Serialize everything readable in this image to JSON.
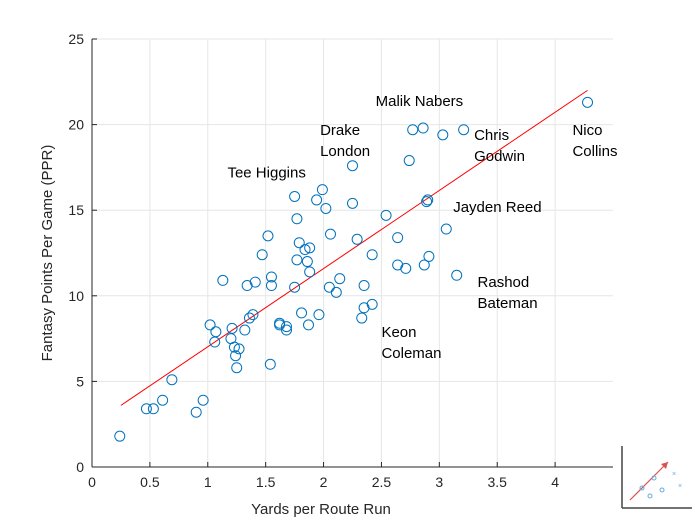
{
  "chart_data": {
    "type": "scatter",
    "xlabel": "Yards per Route Run",
    "ylabel": "Fantasy Points Per Game (PPR)",
    "xlim": [
      0,
      4.5
    ],
    "ylim": [
      0,
      25
    ],
    "xticks": [
      0,
      0.5,
      1,
      1.5,
      2,
      2.5,
      3,
      3.5,
      4
    ],
    "xtick_labels": [
      "0",
      "0.5",
      "1",
      "1.5",
      "2",
      "2.5",
      "3",
      "3.5",
      "4"
    ],
    "yticks": [
      0,
      5,
      10,
      15,
      20,
      25
    ],
    "ytick_labels": [
      "0",
      "5",
      "10",
      "15",
      "20",
      "25"
    ],
    "grid": true,
    "point_color": "#0072BD",
    "fit_color": "#FF0000",
    "trendline": {
      "x": [
        0.25,
        4.28
      ],
      "y": [
        3.6,
        22.0
      ]
    },
    "points": [
      [
        0.24,
        1.8
      ],
      [
        0.47,
        3.4
      ],
      [
        0.53,
        3.4
      ],
      [
        0.61,
        3.9
      ],
      [
        0.69,
        5.1
      ],
      [
        0.9,
        3.2
      ],
      [
        0.96,
        3.9
      ],
      [
        1.02,
        8.3
      ],
      [
        1.06,
        7.3
      ],
      [
        1.07,
        7.9
      ],
      [
        1.13,
        10.9
      ],
      [
        1.2,
        7.5
      ],
      [
        1.21,
        8.1
      ],
      [
        1.23,
        7.0
      ],
      [
        1.24,
        6.5
      ],
      [
        1.25,
        5.8
      ],
      [
        1.27,
        6.9
      ],
      [
        1.32,
        8.0
      ],
      [
        1.34,
        10.6
      ],
      [
        1.36,
        8.7
      ],
      [
        1.39,
        8.9
      ],
      [
        1.41,
        10.8
      ],
      [
        1.47,
        12.4
      ],
      [
        1.52,
        13.5
      ],
      [
        1.54,
        6.0
      ],
      [
        1.55,
        11.1
      ],
      [
        1.55,
        10.6
      ],
      [
        1.62,
        8.4
      ],
      [
        1.62,
        8.3
      ],
      [
        1.68,
        8.0
      ],
      [
        1.68,
        8.2
      ],
      [
        1.75,
        15.8
      ],
      [
        1.75,
        10.5
      ],
      [
        1.77,
        14.5
      ],
      [
        1.77,
        12.1
      ],
      [
        1.79,
        13.1
      ],
      [
        1.81,
        9.0
      ],
      [
        1.84,
        12.7
      ],
      [
        1.86,
        12.0
      ],
      [
        1.87,
        8.3
      ],
      [
        1.88,
        11.4
      ],
      [
        1.88,
        12.8
      ],
      [
        1.94,
        15.6
      ],
      [
        1.96,
        8.9
      ],
      [
        1.99,
        16.2
      ],
      [
        2.02,
        15.1
      ],
      [
        2.05,
        10.5
      ],
      [
        2.06,
        13.6
      ],
      [
        2.11,
        10.2
      ],
      [
        2.14,
        11.0
      ],
      [
        2.25,
        17.6
      ],
      [
        2.25,
        15.4
      ],
      [
        2.29,
        13.3
      ],
      [
        2.33,
        8.7
      ],
      [
        2.35,
        9.3
      ],
      [
        2.35,
        10.6
      ],
      [
        2.42,
        9.5
      ],
      [
        2.42,
        12.4
      ],
      [
        2.54,
        14.7
      ],
      [
        2.64,
        13.4
      ],
      [
        2.64,
        11.8
      ],
      [
        2.71,
        11.6
      ],
      [
        2.74,
        17.9
      ],
      [
        2.77,
        19.7
      ],
      [
        2.86,
        19.8
      ],
      [
        2.87,
        11.8
      ],
      [
        2.89,
        15.5
      ],
      [
        2.9,
        15.6
      ],
      [
        2.91,
        12.3
      ],
      [
        3.03,
        19.4
      ],
      [
        3.06,
        13.9
      ],
      [
        3.15,
        11.2
      ],
      [
        3.21,
        19.7
      ],
      [
        4.28,
        21.3
      ]
    ],
    "annotations": [
      {
        "lines": [
          "Malik Nabers"
        ],
        "x": 2.45,
        "y": 21.1
      },
      {
        "lines": [
          "Drake",
          "London"
        ],
        "x": 1.97,
        "y": 19.4
      },
      {
        "lines": [
          "Chris",
          "Godwin"
        ],
        "x": 3.3,
        "y": 19.1
      },
      {
        "lines": [
          "Nico",
          "Collins"
        ],
        "x": 4.15,
        "y": 19.4
      },
      {
        "lines": [
          "Tee Higgins"
        ],
        "x": 1.17,
        "y": 16.9
      },
      {
        "lines": [
          "Jayden Reed"
        ],
        "x": 3.12,
        "y": 14.9
      },
      {
        "lines": [
          "Rashod",
          "Bateman"
        ],
        "x": 3.33,
        "y": 10.5
      },
      {
        "lines": [
          "Keon",
          "Coleman"
        ],
        "x": 2.5,
        "y": 7.6
      }
    ]
  }
}
